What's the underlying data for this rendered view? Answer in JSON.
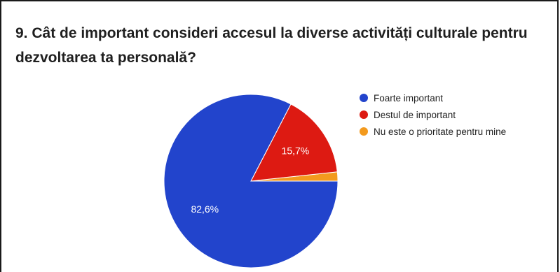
{
  "question": "9. Cât de important consideri accesul la diverse activități culturale pentru dezvoltarea ta personală?",
  "chart_data": {
    "type": "pie",
    "title": "",
    "series": [
      {
        "name": "Foarte important",
        "value": 82.6,
        "label": "82,6%",
        "color": "#2244cc"
      },
      {
        "name": "Destul de important",
        "value": 15.7,
        "label": "15,7%",
        "color": "#dd1a12"
      },
      {
        "name": "Nu este o prioritate pentru mine",
        "value": 1.7,
        "label": "",
        "color": "#f39a1e"
      }
    ],
    "legend_placement": "right"
  }
}
